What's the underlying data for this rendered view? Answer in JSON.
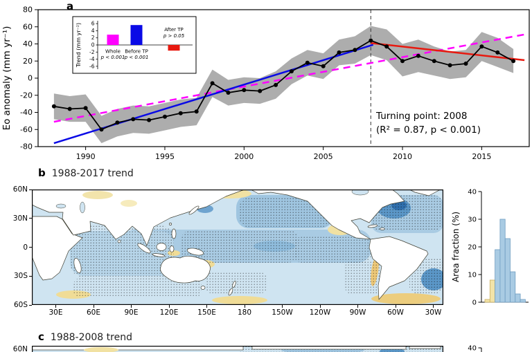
{
  "colors": {
    "magenta": "#FF00FF",
    "blue": "#0A0AE6",
    "red": "#E8190F",
    "band": "#ADADAD",
    "hist_blue": "#A9CBE3",
    "hist_yellow": "#F2E3A8"
  },
  "panel_a": {
    "label": "a",
    "annotation": {
      "line1": "Turning point: 2008",
      "line2": "(R² = 0.87, p < 0.001)"
    },
    "inset": {
      "bar_labels": [
        {
          "name": "Whole",
          "p": "p < 0.001"
        },
        {
          "name": "Before TP",
          "p": "p < 0.001"
        },
        {
          "name": "After TP",
          "p": "p > 0.05"
        }
      ]
    }
  },
  "panel_b": {
    "label": "b",
    "title": "1988-2017 trend"
  },
  "panel_c": {
    "label": "c",
    "title": "1988-2008 trend",
    "lat_tick": "60N",
    "hist_top_tick": "40"
  },
  "chart_data": [
    {
      "id": "eo-anomaly-timeseries",
      "type": "line",
      "ylabel": "Eo anomaly (mm yr⁻¹)",
      "xlim": [
        1987.0,
        2018.0
      ],
      "ylim": [
        -80,
        80
      ],
      "yticks": [
        -80,
        -60,
        -40,
        -20,
        0,
        20,
        40,
        60,
        80
      ],
      "xticks": [
        1990,
        1995,
        2000,
        2005,
        2010,
        2015
      ],
      "x": [
        1988,
        1989,
        1990,
        1991,
        1992,
        1993,
        1994,
        1995,
        1996,
        1997,
        1998,
        1999,
        2000,
        2001,
        2002,
        2003,
        2004,
        2005,
        2006,
        2007,
        2008,
        2009,
        2010,
        2011,
        2012,
        2013,
        2014,
        2015,
        2016,
        2017
      ],
      "values": [
        -33,
        -36,
        -35,
        -60,
        -52,
        -48,
        -49,
        -45,
        -41,
        -39,
        -6,
        -17,
        -14,
        -15,
        -8,
        8,
        18,
        14,
        30,
        33,
        44,
        37,
        20,
        26,
        20,
        15,
        17,
        37,
        30,
        20
      ],
      "band_upper": [
        -18,
        -21,
        -19,
        -44,
        -36,
        -32,
        -33,
        -29,
        -25,
        -23,
        10,
        -2,
        1,
        0,
        8,
        23,
        33,
        29,
        45,
        49,
        61,
        57,
        40,
        45,
        37,
        31,
        33,
        54,
        47,
        34
      ],
      "band_lower": [
        -48,
        -51,
        -51,
        -76,
        -68,
        -64,
        -65,
        -61,
        -57,
        -55,
        -22,
        -32,
        -29,
        -30,
        -24,
        -7,
        3,
        -1,
        15,
        17,
        27,
        21,
        2,
        7,
        3,
        -1,
        1,
        20,
        13,
        6
      ],
      "trends": [
        {
          "name": "Whole",
          "color": "magenta",
          "style": "dashed",
          "x1": 1988,
          "y1": -51,
          "x2": 2017.7,
          "y2": 51
        },
        {
          "name": "Before TP",
          "color": "blue",
          "style": "solid",
          "x1": 1988,
          "y1": -76,
          "x2": 2008.15,
          "y2": 39
        },
        {
          "name": "After TP",
          "color": "red",
          "style": "solid",
          "x1": 2008,
          "y1": 41,
          "x2": 2017.7,
          "y2": 21
        }
      ],
      "turning_point_x": 2008,
      "inset": {
        "ylabel": "Trend (mm yr⁻²)",
        "ylim": [
          -7,
          7
        ],
        "yticks": [
          -6,
          -4,
          -2,
          0,
          2,
          4,
          6
        ],
        "values": [
          2.9,
          5.6,
          -1.6
        ],
        "colors": [
          "magenta",
          "blue",
          "red"
        ]
      }
    },
    {
      "id": "trend-map-1988-2017",
      "type": "heatmap",
      "title": "1988-2017 trend",
      "lat_ticks": [
        "60N",
        "30N",
        "0",
        "30S",
        "60S"
      ],
      "lon_ticks": [
        "30E",
        "60E",
        "90E",
        "120E",
        "150E",
        "180",
        "150W",
        "120W",
        "90W",
        "60W",
        "30W"
      ]
    },
    {
      "id": "area-fraction-hist-1988-2017",
      "type": "bar",
      "ylabel": "Area fraction (%)",
      "ylim": [
        0,
        40
      ],
      "yticks": [
        0,
        10,
        20,
        30,
        40
      ],
      "values": [
        1,
        8,
        19,
        30,
        23,
        11,
        3,
        1
      ],
      "bar_colors": [
        "yellow",
        "yellow",
        "blue",
        "blue",
        "blue",
        "blue",
        "blue",
        "blue"
      ]
    },
    {
      "id": "trend-map-1988-2008",
      "type": "heatmap",
      "title": "1988-2008 trend"
    }
  ]
}
